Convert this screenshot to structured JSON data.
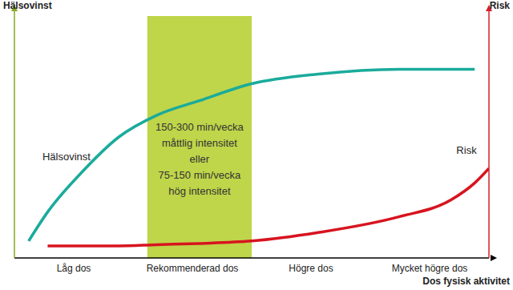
{
  "chart_data": {
    "type": "line",
    "x_label": "Dos fysisk aktivitet",
    "y_label": "Hälsovinst",
    "y2_label": "Risk",
    "x": [
      3,
      7,
      14,
      22,
      30,
      39,
      50,
      64,
      81,
      92,
      97,
      100
    ],
    "xlim": [
      0,
      100
    ],
    "xticks": [
      {
        "value": 12.5,
        "label": "Låg dos"
      },
      {
        "value": 37.5,
        "label": "Rekommenderad dos"
      },
      {
        "value": 62.5,
        "label": "Högre dos"
      },
      {
        "value": 87.5,
        "label": "Mycket högre dos"
      }
    ],
    "ylim": [
      0,
      100
    ],
    "y2lim": [
      0,
      100
    ],
    "tick_labels": "x",
    "grid": false,
    "series": [
      {
        "name": "Hälsovinst",
        "color": "#1aab9b",
        "values": [
          7,
          19,
          35,
          50,
          59,
          65,
          72,
          76,
          78,
          78,
          78,
          null
        ]
      },
      {
        "name": "Risk",
        "color": "#d7141f",
        "axis": "y2",
        "values": [
          null,
          5,
          5,
          5,
          5.5,
          6,
          7,
          10.5,
          17,
          24,
          31,
          37
        ]
      }
    ],
    "annotations": [
      {
        "text": [
          "150-300 min/vecka",
          "måttlig intensitet",
          "eller",
          "75-150 min/vecka",
          "hög intensitet"
        ],
        "x_range": [
          28,
          50
        ],
        "color": "#bfd54a"
      }
    ]
  }
}
